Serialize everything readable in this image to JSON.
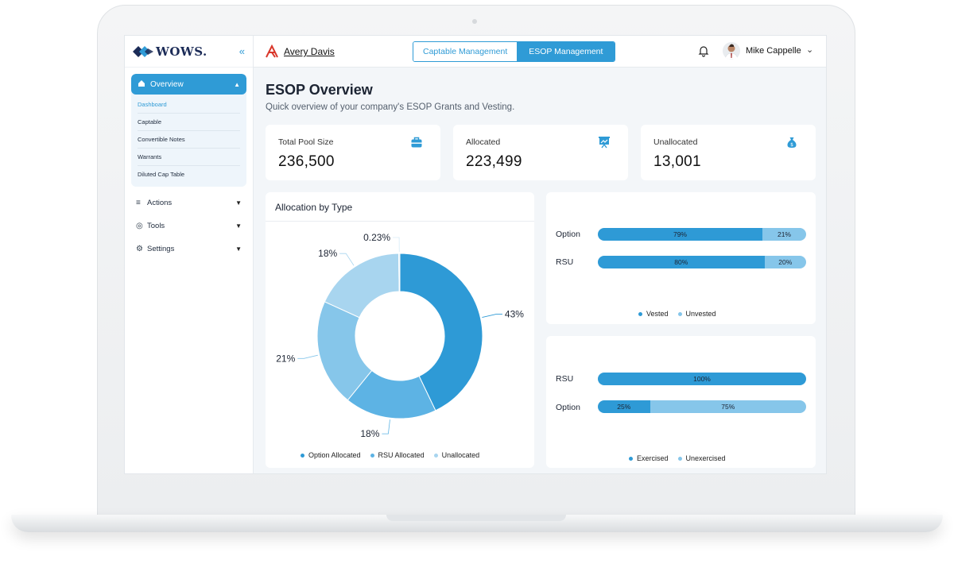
{
  "brand": {
    "name": "WOWS."
  },
  "company": {
    "name": "Avery Davis"
  },
  "header": {
    "tabs": [
      {
        "label": "Captable Management",
        "active": false
      },
      {
        "label": "ESOP Management",
        "active": true
      }
    ],
    "user_name": "Mike Cappelle"
  },
  "sidebar": {
    "overview_label": "Overview",
    "sub_items": [
      "Dashboard",
      "Captable",
      "Convertible Notes",
      "Warrants",
      "Diluted Cap Table"
    ],
    "items": [
      {
        "label": "Actions",
        "icon": "actions-icon"
      },
      {
        "label": "Tools",
        "icon": "tools-icon"
      },
      {
        "label": "Settings",
        "icon": "settings-icon"
      }
    ]
  },
  "page": {
    "title": "ESOP Overview",
    "subtitle": "Quick overview of your company's ESOP Grants and Vesting."
  },
  "stats": [
    {
      "label": "Total Pool Size",
      "value": "236,500",
      "icon": "briefcase-icon"
    },
    {
      "label": "Allocated",
      "value": "223,499",
      "icon": "presentation-chart-icon"
    },
    {
      "label": "Unallocated",
      "value": "13,001",
      "icon": "money-bag-icon"
    }
  ],
  "colors": {
    "accent": "#2f9bd6",
    "option_allocated": "#2e9ad6",
    "rsu_allocated": "#5db3e4",
    "unallocated": "#a8d5ef",
    "vested": "#2e9ad6",
    "unvested": "#86c6ea"
  },
  "chart_data": [
    {
      "type": "pie",
      "title": "Allocation by Type",
      "donut": true,
      "slices": [
        {
          "name": "Option Allocated",
          "value": 43,
          "label": "43%"
        },
        {
          "name": "RSU Allocated",
          "value": 18,
          "label": "18%"
        },
        {
          "name": "Unallocated",
          "value": 21,
          "label": "21%"
        },
        {
          "name": "",
          "value": 18,
          "label": "18%"
        },
        {
          "name": "",
          "value": 0.23,
          "label": "0.23%"
        }
      ],
      "legend": [
        "Option Allocated",
        "RSU Allocated",
        "Unallocated"
      ],
      "legend_position": "bottom"
    },
    {
      "type": "bar",
      "orientation": "horizontal",
      "stacked": true,
      "categories": [
        "Option",
        "RSU"
      ],
      "series": [
        {
          "name": "Vested",
          "values": [
            79,
            80
          ],
          "labels": [
            "79%",
            "80%"
          ]
        },
        {
          "name": "Unvested",
          "values": [
            21,
            20
          ],
          "labels": [
            "21%",
            "20%"
          ]
        }
      ],
      "legend_position": "bottom"
    },
    {
      "type": "bar",
      "orientation": "horizontal",
      "stacked": true,
      "categories": [
        "RSU",
        "Option"
      ],
      "series": [
        {
          "name": "Exercised",
          "values": [
            100,
            25
          ],
          "labels": [
            "100%",
            "25%"
          ]
        },
        {
          "name": "Unexercised",
          "values": [
            0,
            75
          ],
          "labels": [
            "",
            "75%"
          ]
        }
      ],
      "legend_position": "bottom"
    }
  ]
}
